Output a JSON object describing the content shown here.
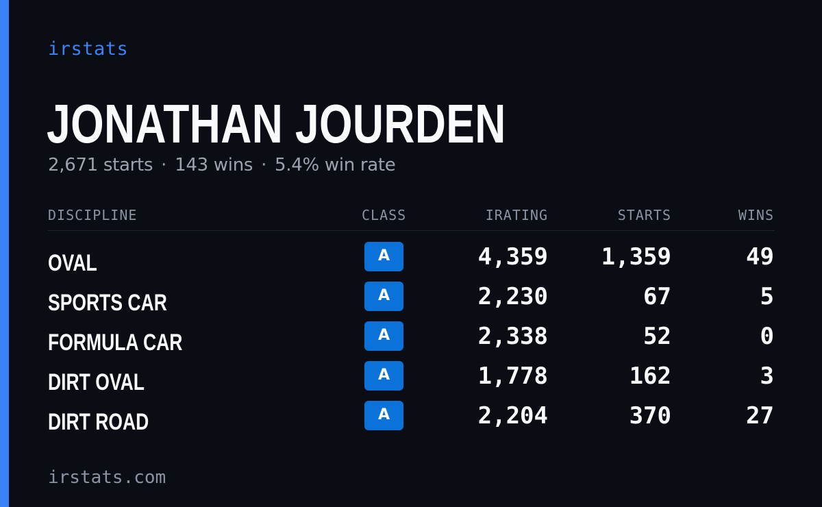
{
  "brand": "irstats",
  "player": {
    "name": "JONATHAN JOURDEN",
    "starts_text": "2,671 starts",
    "wins_text": "143 wins",
    "win_rate_text": "5.4% win rate",
    "separator": "·"
  },
  "table": {
    "headers": {
      "discipline": "DISCIPLINE",
      "class": "CLASS",
      "irating": "IRATING",
      "starts": "STARTS",
      "wins": "WINS"
    },
    "rows": [
      {
        "discipline": "OVAL",
        "class": "A",
        "irating": "4,359",
        "starts": "1,359",
        "wins": "49"
      },
      {
        "discipline": "SPORTS CAR",
        "class": "A",
        "irating": "2,230",
        "starts": "67",
        "wins": "5"
      },
      {
        "discipline": "FORMULA CAR",
        "class": "A",
        "irating": "2,338",
        "starts": "52",
        "wins": "0"
      },
      {
        "discipline": "DIRT OVAL",
        "class": "A",
        "irating": "1,778",
        "starts": "162",
        "wins": "3"
      },
      {
        "discipline": "DIRT ROAD",
        "class": "A",
        "irating": "2,204",
        "starts": "370",
        "wins": "27"
      }
    ]
  },
  "footer": "irstats.com",
  "colors": {
    "background": "#0a0d14",
    "accent": "#3b82f6",
    "class_badge": "#0b72d9",
    "text_primary": "#f8fafc",
    "text_muted": "#9ca3af"
  }
}
